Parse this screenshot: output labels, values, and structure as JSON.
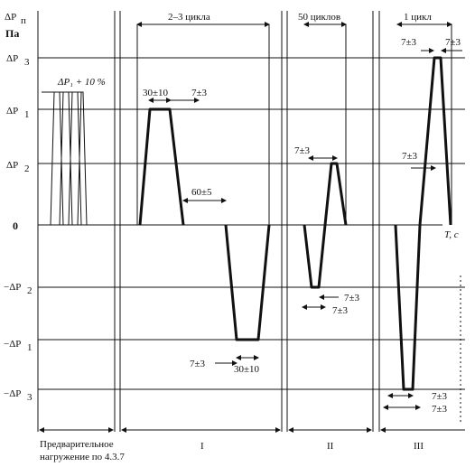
{
  "axis": {
    "ylabel": "ΔP",
    "ylabel_sub": "п",
    "yunit": "Па",
    "xlabel": "T, с"
  },
  "levels": [
    {
      "key": "p3",
      "label": "ΔP",
      "sub": "3"
    },
    {
      "key": "p1",
      "label": "ΔP",
      "sub": "1"
    },
    {
      "key": "p2",
      "label": "ΔP",
      "sub": "2"
    },
    {
      "key": "zero",
      "label": "0",
      "sub": ""
    },
    {
      "key": "m2",
      "label": "−ΔP",
      "sub": "2"
    },
    {
      "key": "m1",
      "label": "−ΔP",
      "sub": "1"
    },
    {
      "key": "m3",
      "label": "−ΔP",
      "sub": "3"
    }
  ],
  "preload_annotation": "ΔP₁ + 10 %",
  "phases": [
    {
      "id": "I",
      "header": "2–3 цикла",
      "label": "I"
    },
    {
      "id": "II",
      "header": "50 циклов",
      "label": "II"
    },
    {
      "id": "III",
      "header": "1 цикл",
      "label": "III"
    }
  ],
  "preload_caption_line1": "Предварительное",
  "preload_caption_line2": "нагружение по 4.3.7",
  "annotations": {
    "a1": "30±10",
    "a2": "7±3",
    "a3": "60±5",
    "a4": "7±3",
    "a5": "30±10",
    "a6": "7±3",
    "a7": "7±3",
    "a8": "7±3",
    "a9": "7±3",
    "a10": "7±3",
    "a11": "7±3",
    "a12": "7±3",
    "a13": "7±3"
  }
}
